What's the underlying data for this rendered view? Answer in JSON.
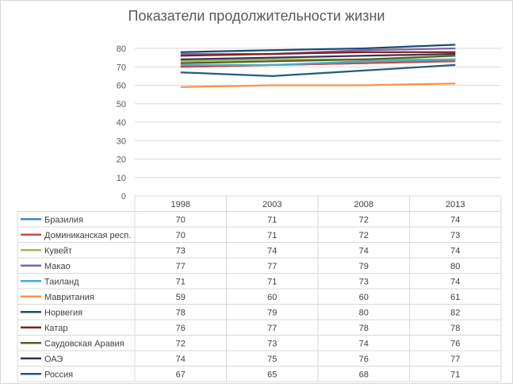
{
  "chart_data": {
    "type": "line",
    "title": "Показатели продолжительности жизни",
    "categories": [
      "1998",
      "2003",
      "2008",
      "2013"
    ],
    "ylim": [
      0,
      80
    ],
    "yticks": [
      0,
      10,
      20,
      30,
      40,
      50,
      60,
      70,
      80
    ],
    "grid": true,
    "legend": "data-table",
    "series": [
      {
        "name": "Бразилия",
        "color": "#4a86c8",
        "values": [
          70,
          71,
          72,
          74
        ]
      },
      {
        "name": "Доминиканская респ.",
        "color": "#c0504d",
        "values": [
          70,
          71,
          72,
          73
        ]
      },
      {
        "name": "Кувейт",
        "color": "#9bbb59",
        "values": [
          73,
          74,
          74,
          74
        ]
      },
      {
        "name": "Макао",
        "color": "#8064a2",
        "values": [
          77,
          77,
          79,
          80
        ]
      },
      {
        "name": "Таиланд",
        "color": "#4bacc6",
        "values": [
          71,
          71,
          73,
          74
        ]
      },
      {
        "name": "Мавритания",
        "color": "#f79646",
        "values": [
          59,
          60,
          60,
          61
        ]
      },
      {
        "name": "Норвегия",
        "color": "#1f497d",
        "values": [
          78,
          79,
          80,
          82
        ]
      },
      {
        "name": "Катар",
        "color": "#7f1f1f",
        "values": [
          76,
          77,
          78,
          78
        ]
      },
      {
        "name": "Саудовская Аравия",
        "color": "#4f6228",
        "values": [
          72,
          73,
          74,
          76
        ]
      },
      {
        "name": "ОАЭ",
        "color": "#3f3151",
        "values": [
          74,
          75,
          76,
          77
        ]
      },
      {
        "name": "Россия",
        "color": "#215f7a",
        "values": [
          67,
          65,
          68,
          71
        ]
      }
    ]
  }
}
